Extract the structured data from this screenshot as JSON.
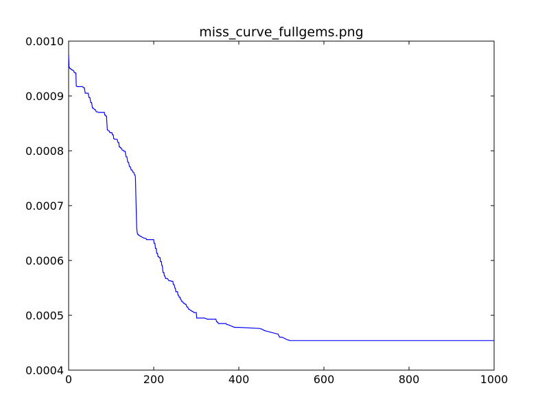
{
  "chart_data": {
    "type": "line",
    "title": "miss_curve_fullgems.png",
    "xlabel": "",
    "ylabel": "",
    "xlim": [
      0,
      1000
    ],
    "ylim": [
      0.0004,
      0.001
    ],
    "grid": false,
    "x_ticks": [
      {
        "value": 0,
        "label": "0"
      },
      {
        "value": 200,
        "label": "200"
      },
      {
        "value": 400,
        "label": "400"
      },
      {
        "value": 600,
        "label": "600"
      },
      {
        "value": 800,
        "label": "800"
      },
      {
        "value": 1000,
        "label": "1000"
      }
    ],
    "y_ticks": [
      {
        "value": 0.0004,
        "label": "0.0004"
      },
      {
        "value": 0.0005,
        "label": "0.0005"
      },
      {
        "value": 0.0006,
        "label": "0.0006"
      },
      {
        "value": 0.0007,
        "label": "0.0007"
      },
      {
        "value": 0.0008,
        "label": "0.0008"
      },
      {
        "value": 0.0009,
        "label": "0.0009"
      },
      {
        "value": 0.001,
        "label": "0.0010"
      }
    ],
    "series": [
      {
        "color": "#0000ff",
        "x": [
          0,
          1,
          2,
          3,
          5,
          6,
          8,
          9,
          10,
          11,
          12,
          13,
          14,
          15,
          17,
          18,
          19,
          20,
          33,
          35,
          37,
          39,
          46,
          48,
          50,
          52,
          54,
          56,
          58,
          61,
          63,
          65,
          68,
          70,
          84,
          85,
          87,
          88,
          89,
          90,
          91,
          92,
          94,
          96,
          97,
          98,
          102,
          103,
          105,
          106,
          107,
          108,
          114,
          116,
          118,
          119,
          121,
          122,
          124,
          126,
          129,
          130,
          133,
          135,
          137,
          139,
          141,
          143,
          145,
          147,
          149,
          151,
          153,
          155,
          156,
          157,
          158,
          159,
          160,
          161,
          162,
          163,
          164,
          165,
          167,
          168,
          170,
          171,
          172,
          176,
          177,
          182,
          183,
          190,
          200,
          201,
          203,
          204,
          206,
          207,
          209,
          210,
          212,
          213,
          215,
          216,
          218,
          219,
          220,
          221,
          222,
          224,
          225,
          226,
          228,
          232,
          234,
          236,
          240,
          241,
          245,
          246,
          248,
          250,
          251,
          252,
          254,
          256,
          257,
          258,
          260,
          262,
          263,
          264,
          266,
          268,
          270,
          272,
          274,
          276,
          278,
          280,
          282,
          284,
          286,
          288,
          290,
          292,
          294,
          296,
          298,
          300,
          301,
          302,
          304,
          320,
          322,
          324,
          325,
          326,
          346,
          348,
          350,
          352,
          368,
          370,
          372,
          374,
          390,
          392,
          394,
          396,
          398,
          400,
          448,
          449,
          452,
          454,
          460,
          462,
          464,
          466,
          490,
          492,
          496,
          498,
          500,
          502,
          515,
          517,
          519,
          521,
          1000
        ],
        "y": [
          0.000975,
          0.000952,
          0.000952,
          0.00095,
          0.00095,
          0.000948,
          0.000948,
          0.000947,
          0.000947,
          0.000946,
          0.000946,
          0.000943,
          0.000943,
          0.000942,
          0.000942,
          0.000918,
          0.000918,
          0.000917,
          0.000917,
          0.000915,
          0.000915,
          0.000905,
          0.000905,
          0.000897,
          0.000897,
          0.000888,
          0.000888,
          0.000878,
          0.000878,
          0.000875,
          0.000875,
          0.000871,
          0.000871,
          0.00087,
          0.00087,
          0.000865,
          0.000865,
          0.000863,
          0.000863,
          0.00085,
          0.000838,
          0.000838,
          0.000836,
          0.000836,
          0.000833,
          0.000833,
          0.000833,
          0.000829,
          0.000829,
          0.000822,
          0.000822,
          0.000821,
          0.000821,
          0.000815,
          0.000815,
          0.000807,
          0.000807,
          0.000805,
          0.000805,
          0.000801,
          0.000801,
          0.000799,
          0.000799,
          0.000789,
          0.000789,
          0.000779,
          0.000779,
          0.000771,
          0.000771,
          0.000765,
          0.000765,
          0.000761,
          0.000761,
          0.000756,
          0.000756,
          0.000752,
          0.00072,
          0.00069,
          0.00066,
          0.000652,
          0.000648,
          0.000648,
          0.000646,
          0.000646,
          0.000646,
          0.000644,
          0.000644,
          0.000643,
          0.000643,
          0.000641,
          0.000641,
          0.00064,
          0.000638,
          0.000638,
          0.000638,
          0.000631,
          0.000631,
          0.000622,
          0.000622,
          0.000613,
          0.000613,
          0.000607,
          0.000607,
          0.000605,
          0.000605,
          0.000598,
          0.000598,
          0.000591,
          0.000591,
          0.000584,
          0.000578,
          0.000578,
          0.000572,
          0.000572,
          0.000567,
          0.000567,
          0.000565,
          0.000563,
          0.000563,
          0.000562,
          0.000562,
          0.000556,
          0.000556,
          0.000549,
          0.000549,
          0.000543,
          0.000543,
          0.000543,
          0.000537,
          0.000537,
          0.000533,
          0.000533,
          0.000529,
          0.000529,
          0.000525,
          0.000525,
          0.000522,
          0.000522,
          0.00052,
          0.00052,
          0.000515,
          0.000515,
          0.000511,
          0.000511,
          0.000509,
          0.000509,
          0.000507,
          0.000507,
          0.000505,
          0.000505,
          0.000505,
          0.000505,
          0.000495,
          0.000495,
          0.000495,
          0.000495,
          0.000494,
          0.000494,
          0.000493,
          0.000493,
          0.000493,
          0.000488,
          0.000488,
          0.000485,
          0.000485,
          0.000485,
          0.000483,
          0.000483,
          0.000478,
          0.000478,
          0.000478,
          0.000478,
          0.000478,
          0.000478,
          0.000476,
          0.000476,
          0.000475,
          0.000475,
          0.000472,
          0.000472,
          0.000471,
          0.000471,
          0.000466,
          0.000466,
          0.00046,
          0.00046,
          0.00046,
          0.00046,
          0.000455,
          0.000455,
          0.000454,
          0.000454,
          0.000454
        ]
      }
    ]
  }
}
